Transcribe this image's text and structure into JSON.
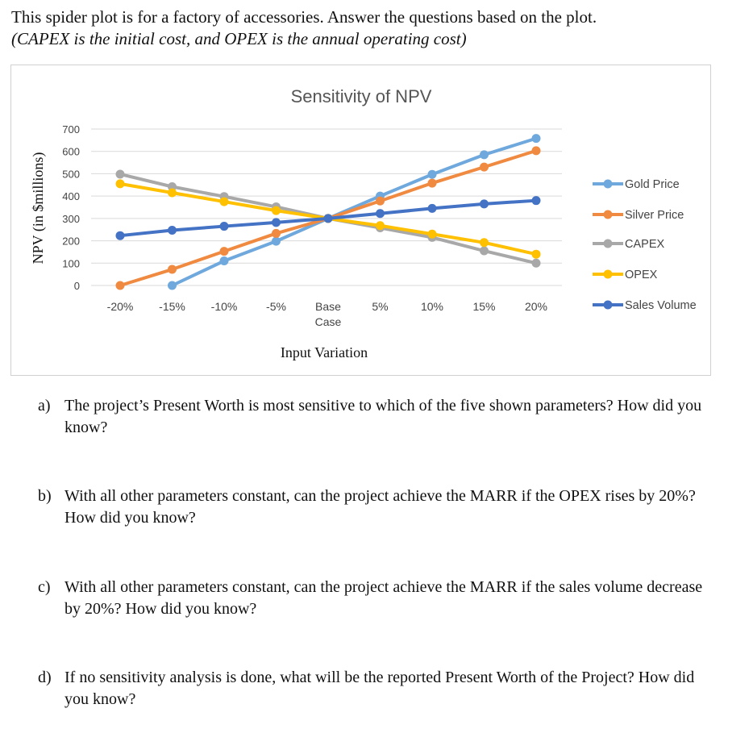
{
  "intro": {
    "line1": "This spider plot is for a factory of accessories. Answer the questions based on the plot.",
    "line2": "(CAPEX is the initial cost, and OPEX is the annual operating cost)"
  },
  "chart_data": {
    "type": "line",
    "title": "Sensitivity of NPV",
    "xlabel": "Input Variation",
    "ylabel": "NPV (in $millions)",
    "categories": [
      "-20%",
      "-15%",
      "-10%",
      "-5%",
      "Base Case",
      "5%",
      "10%",
      "15%",
      "20%"
    ],
    "y_ticks": [
      "0",
      "100",
      "200",
      "300",
      "400",
      "500",
      "600",
      "700"
    ],
    "ylim": [
      0,
      700
    ],
    "legend_position": "right",
    "series": [
      {
        "name": "Gold Price",
        "color": "#6fa8dc",
        "values": [
          null,
          0,
          110,
          198,
          300,
          400,
          497,
          585,
          658
        ]
      },
      {
        "name": "Silver Price",
        "color": "#f08a40",
        "values": [
          0,
          72,
          153,
          233,
          300,
          378,
          458,
          530,
          603
        ]
      },
      {
        "name": "CAPEX",
        "color": "#a8a8a8",
        "values": [
          498,
          442,
          398,
          352,
          300,
          258,
          215,
          155,
          100
        ]
      },
      {
        "name": "OPEX",
        "color": "#ffc000",
        "values": [
          455,
          415,
          375,
          335,
          300,
          268,
          230,
          192,
          140
        ]
      },
      {
        "name": "Sales Volume",
        "color": "#4472c4",
        "values": [
          223,
          247,
          265,
          282,
          300,
          322,
          345,
          365,
          380
        ]
      }
    ]
  },
  "questions": [
    {
      "letter": "a)",
      "text": "The project’s Present Worth is most sensitive to which of the five shown parameters? How did you know?"
    },
    {
      "letter": "b)",
      "text": "With all other parameters constant, can the project achieve the MARR if the OPEX rises by 20%? How did you know?"
    },
    {
      "letter": "c)",
      "text": "With all other parameters constant, can the project achieve the MARR if the sales volume decrease by 20%? How did you know?"
    },
    {
      "letter": "d)",
      "text": "If no sensitivity analysis is done, what will be the reported Present Worth of the Project? How did you know?"
    }
  ]
}
